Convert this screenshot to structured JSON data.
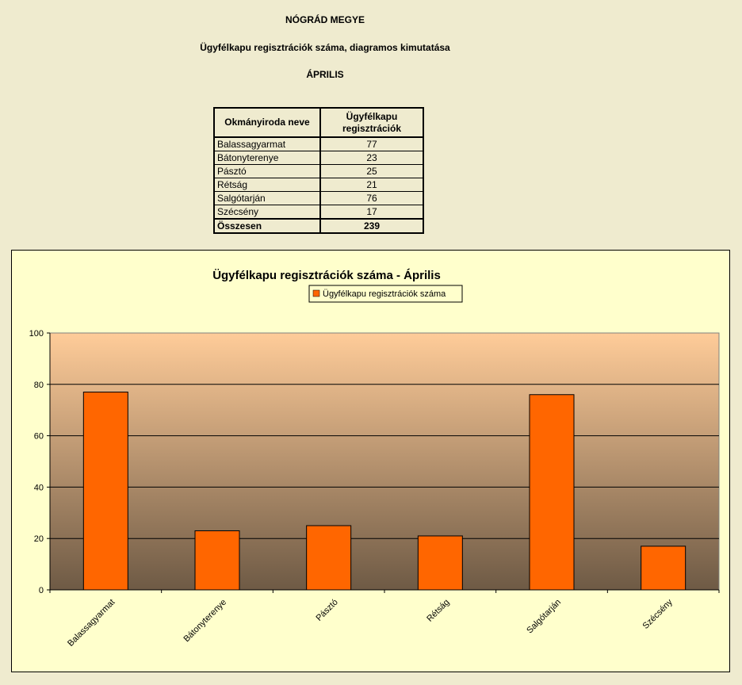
{
  "header": {
    "line1": "NÓGRÁD MEGYE",
    "line2": "Ügyfélkapu regisztrációk száma, diagramos kimutatása",
    "line3": "ÁPRILIS"
  },
  "table": {
    "col1": "Okmányiroda neve",
    "col2": "Ügyfélkapu regisztrációk",
    "rows": [
      {
        "name": "Balassagyarmat",
        "value": "77"
      },
      {
        "name": "Bátonyterenye",
        "value": "23"
      },
      {
        "name": "Pásztó",
        "value": "25"
      },
      {
        "name": "Rétság",
        "value": "21"
      },
      {
        "name": "Salgótarján",
        "value": "76"
      },
      {
        "name": "Szécsény",
        "value": "17"
      }
    ],
    "total_label": "Összesen",
    "total_value": "239"
  },
  "chart_data": {
    "type": "bar",
    "title": "Ügyfélkapu regisztrációk száma - Április",
    "categories": [
      "Balassagyarmat",
      "Bátonyterenye",
      "Pásztó",
      "Rétság",
      "Salgótarján",
      "Szécsény"
    ],
    "series": [
      {
        "name": "Ügyfélkapu regisztrációk száma",
        "values": [
          77,
          23,
          25,
          21,
          76,
          17
        ]
      }
    ],
    "ylim": [
      0,
      100
    ],
    "yticks": [
      0,
      20,
      40,
      60,
      80,
      100
    ],
    "grid": true,
    "legend": "top",
    "colors": {
      "bar": "#ff6600",
      "plot_top": "#ffcc99",
      "plot_bottom": "#6e5a45",
      "chart_bg": "#ffffcc",
      "page_bg": "#efebcf"
    }
  }
}
